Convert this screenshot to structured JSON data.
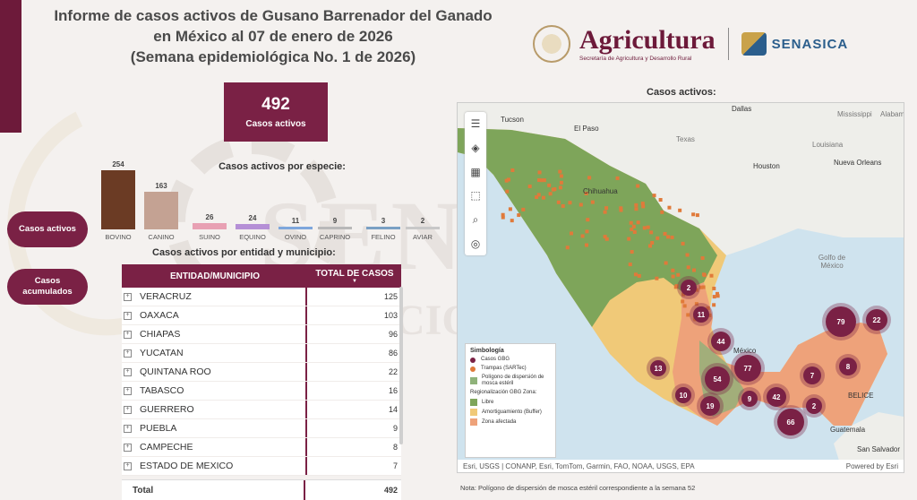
{
  "title": {
    "line1": "Informe de casos activos de Gusano Barrenador del Ganado",
    "line2": "en México al 07 de enero de 2026",
    "line3": "(Semana epidemiológica No. 1 de 2026)"
  },
  "logos": {
    "agricultura": "Agricultura",
    "agricultura_sub": "Secretaría de Agricultura y Desarrollo Rural",
    "senasica": "SENASICA"
  },
  "summary": {
    "total": "492",
    "label": "Casos activos"
  },
  "nav": {
    "active_cases": "Casos activos",
    "accumulated_cases": "Casos acumulados"
  },
  "species": {
    "title": "Casos activos por especie:",
    "items": [
      {
        "name": "BOVINO",
        "value": 254,
        "color": "#6b3b24"
      },
      {
        "name": "CANINO",
        "value": 163,
        "color": "#c4a293"
      },
      {
        "name": "SUINO",
        "value": 26,
        "color": "#e8a0b3"
      },
      {
        "name": "EQUINO",
        "value": 24,
        "color": "#b58fd6"
      },
      {
        "name": "OVINO",
        "value": 11,
        "color": "#7ea7dc"
      },
      {
        "name": "CAPRINO",
        "value": 9,
        "color": "#b8b8b8"
      },
      {
        "name": "FELINO",
        "value": 3,
        "color": "#7aa0c4"
      },
      {
        "name": "AVIAR",
        "value": 2,
        "color": "#c8c8c8"
      }
    ]
  },
  "table": {
    "title": "Casos activos por entidad y municipio:",
    "col_entity": "ENTIDAD/MUNICIPIO",
    "col_total": "TOTAL DE CASOS",
    "rows": [
      {
        "name": "VERACRUZ",
        "total": "125"
      },
      {
        "name": "OAXACA",
        "total": "103"
      },
      {
        "name": "CHIAPAS",
        "total": "96"
      },
      {
        "name": "YUCATAN",
        "total": "86"
      },
      {
        "name": "QUINTANA ROO",
        "total": "22"
      },
      {
        "name": "TABASCO",
        "total": "16"
      },
      {
        "name": "GUERRERO",
        "total": "14"
      },
      {
        "name": "PUEBLA",
        "total": "9"
      },
      {
        "name": "CAMPECHE",
        "total": "8"
      },
      {
        "name": "ESTADO DE MEXICO",
        "total": "7"
      }
    ],
    "total_label": "Total",
    "total_value": "492"
  },
  "map": {
    "title": "Casos activos:",
    "places": [
      "Dallas",
      "Tucson",
      "El Paso",
      "Mississippi",
      "Alabama",
      "Texas",
      "Louisiana",
      "Houston",
      "Nueva Orleans",
      "Chihuahua",
      "Golfo de México",
      "México",
      "BELICE",
      "Guatemala",
      "San Salvador"
    ],
    "legend": {
      "title": "Simbología",
      "items": [
        "Casos GBG",
        "Trampas (SARTec)",
        "Polígono de dispersión de mosca estéril"
      ],
      "sub": "Regionalización GBG Zona:",
      "zones": [
        "Libre",
        "Amortiguamiento (Buffer)",
        "Zona afectada"
      ]
    },
    "clusters": [
      "2",
      "11",
      "44",
      "77",
      "54",
      "13",
      "10",
      "19",
      "9",
      "42",
      "7",
      "8",
      "79",
      "22",
      "2",
      "66"
    ],
    "attribution": "Esri, USGS | CONANP, Esri, TomTom, Garmin, FAO, NOAA, USGS, EPA",
    "powered": "Powered by Esri"
  },
  "note": "Nota: Polígono de dispersión de mosca estéril correspondiente a la semana 52",
  "colors": {
    "brand": "#7a2145",
    "free_zone": "#7ea55a",
    "buffer_zone": "#f0c978",
    "affected_zone": "#eea27a",
    "traps": "#e07a3a"
  }
}
